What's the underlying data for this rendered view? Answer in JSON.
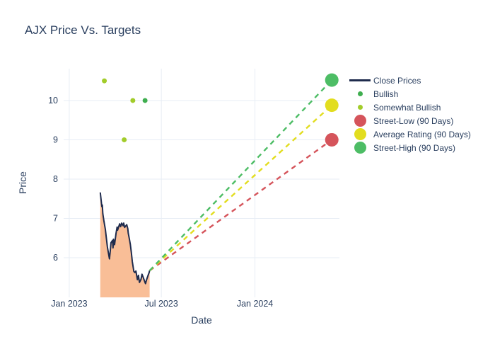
{
  "title": "AJX Price Vs. Targets",
  "colors": {
    "text": "#2a3f5f",
    "grid": "#e7edf5",
    "background": "#ffffff",
    "close_line": "#1f2b4d",
    "close_fill": "#f9be97",
    "bullish": "#3fae4f",
    "somewhat_bullish": "#a2cc2a",
    "street_low": "#d5545b",
    "average_rating": "#e2dd1f",
    "street_high": "#4dbd65"
  },
  "legend": {
    "items": [
      {
        "label": "Close Prices",
        "type": "line",
        "color": "#1f2b4d"
      },
      {
        "label": "Bullish",
        "type": "dot-small",
        "color": "#3fae4f"
      },
      {
        "label": "Somewhat Bullish",
        "type": "dot-small",
        "color": "#a2cc2a"
      },
      {
        "label": "Street-Low (90 Days)",
        "type": "dot-large",
        "color": "#d5545b"
      },
      {
        "label": "Average Rating (90 Days)",
        "type": "dot-large",
        "color": "#e2dd1f"
      },
      {
        "label": "Street-High (90 Days)",
        "type": "dot-large",
        "color": "#4dbd65"
      }
    ]
  },
  "chart_data": {
    "type": "area",
    "title": "AJX Price Vs. Targets",
    "xlabel": "Date",
    "ylabel": "Price",
    "grid": true,
    "legend_position": "right",
    "x_range": [
      "2022-12-21",
      "2024-06-15"
    ],
    "y_range": [
      4.99,
      10.81
    ],
    "y_ticks": [
      6,
      7,
      8,
      9,
      10
    ],
    "x_ticks": [
      {
        "label": "Jan 2023",
        "date": "2023-01-01"
      },
      {
        "label": "Jul 2023",
        "date": "2023-07-01"
      },
      {
        "label": "Jan 2024",
        "date": "2024-01-01"
      }
    ],
    "close_prices": {
      "name": "Close Prices",
      "line_color": "#1f2b4d",
      "fill_color": "#f9be97",
      "points": [
        [
          "2023-03-03",
          7.66
        ],
        [
          "2023-03-06",
          7.3
        ],
        [
          "2023-03-07",
          7.34
        ],
        [
          "2023-03-08",
          7.12
        ],
        [
          "2023-03-10",
          6.95
        ],
        [
          "2023-03-13",
          6.72
        ],
        [
          "2023-03-15",
          6.5
        ],
        [
          "2023-03-17",
          6.27
        ],
        [
          "2023-03-20",
          6.05
        ],
        [
          "2023-03-21",
          5.97
        ],
        [
          "2023-03-23",
          6.22
        ],
        [
          "2023-03-24",
          6.38
        ],
        [
          "2023-03-27",
          6.44
        ],
        [
          "2023-03-28",
          6.25
        ],
        [
          "2023-03-29",
          6.47
        ],
        [
          "2023-03-31",
          6.33
        ],
        [
          "2023-04-03",
          6.62
        ],
        [
          "2023-04-05",
          6.78
        ],
        [
          "2023-04-06",
          6.7
        ],
        [
          "2023-04-10",
          6.86
        ],
        [
          "2023-04-12",
          6.79
        ],
        [
          "2023-04-14",
          6.88
        ],
        [
          "2023-04-17",
          6.81
        ],
        [
          "2023-04-18",
          6.88
        ],
        [
          "2023-04-20",
          6.77
        ],
        [
          "2023-04-24",
          6.84
        ],
        [
          "2023-04-26",
          6.74
        ],
        [
          "2023-04-27",
          6.62
        ],
        [
          "2023-04-28",
          6.56
        ],
        [
          "2023-05-01",
          6.34
        ],
        [
          "2023-05-03",
          6.14
        ],
        [
          "2023-05-05",
          5.9
        ],
        [
          "2023-05-08",
          5.65
        ],
        [
          "2023-05-10",
          5.62
        ],
        [
          "2023-05-12",
          5.66
        ],
        [
          "2023-05-15",
          5.44
        ],
        [
          "2023-05-17",
          5.55
        ],
        [
          "2023-05-19",
          5.37
        ],
        [
          "2023-05-22",
          5.45
        ],
        [
          "2023-05-24",
          5.58
        ],
        [
          "2023-05-26",
          5.51
        ],
        [
          "2023-05-30",
          5.37
        ],
        [
          "2023-05-31",
          5.34
        ],
        [
          "2023-06-02",
          5.44
        ],
        [
          "2023-06-05",
          5.55
        ],
        [
          "2023-06-07",
          5.62
        ],
        [
          "2023-06-08",
          5.67
        ]
      ]
    },
    "ratings": [
      {
        "name": "Bullish",
        "color": "#3fae4f",
        "points": [
          [
            "2023-05-30",
            10.0
          ]
        ]
      },
      {
        "name": "Somewhat Bullish",
        "color": "#a2cc2a",
        "points": [
          [
            "2023-03-11",
            10.5
          ],
          [
            "2023-04-19",
            9.0
          ],
          [
            "2023-05-06",
            10.0
          ]
        ]
      }
    ],
    "targets": [
      {
        "name": "Street-Low (90 Days)",
        "color": "#d5545b",
        "date": "2024-05-31",
        "value": 9.0
      },
      {
        "name": "Average Rating (90 Days)",
        "color": "#e2dd1f",
        "date": "2024-05-31",
        "value": 9.88
      },
      {
        "name": "Street-High (90 Days)",
        "color": "#4dbd65",
        "date": "2024-05-31",
        "value": 10.52
      }
    ]
  }
}
